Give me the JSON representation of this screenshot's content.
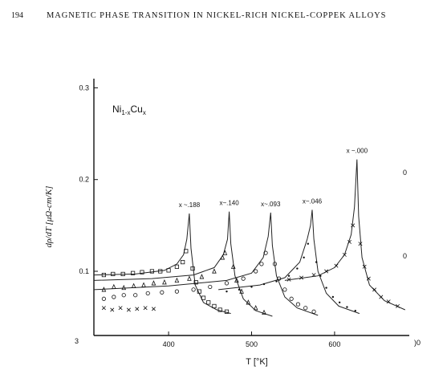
{
  "page": {
    "number": "194",
    "running_header": "MAGNETIC PHASE TRANSITION IN NICKEL-RICH NICKEL-COPPEK ALLOYS"
  },
  "chart_data": {
    "type": "scatter",
    "title": "Ni1-xCux",
    "title_parts": {
      "base": "Ni",
      "sub1": "1-x",
      "mid": "Cu",
      "sub2": "x"
    },
    "xlabel": "T [°K]",
    "ylabel": "dρ/dT [μΩ-cm/K]",
    "xlim": [
      310,
      690
    ],
    "ylim": [
      0.03,
      0.31
    ],
    "x_ticks": [
      "400",
      "500",
      "600"
    ],
    "x_tick_values": [
      400,
      500,
      600
    ],
    "y_ticks": [
      "0.1",
      "0.2",
      "0.3"
    ],
    "y_tick_values": [
      0.1,
      0.2,
      0.3
    ],
    "y_bottom_label": "3",
    "right_edge_labels": [
      "0",
      "0",
      ")0"
    ],
    "series": [
      {
        "name": "x ~ .188",
        "label": "x ~.188",
        "marker": "square",
        "Tc": 425,
        "peak": 0.163,
        "curve": [
          [
            310,
            0.096
          ],
          [
            360,
            0.097
          ],
          [
            395,
            0.101
          ],
          [
            410,
            0.108
          ],
          [
            418,
            0.118
          ],
          [
            422,
            0.135
          ],
          [
            425,
            0.163
          ],
          [
            427,
            0.125
          ],
          [
            432,
            0.085
          ],
          [
            442,
            0.066
          ],
          [
            458,
            0.058
          ],
          [
            475,
            0.054
          ]
        ],
        "points": [
          [
            322,
            0.096
          ],
          [
            333,
            0.097
          ],
          [
            345,
            0.097
          ],
          [
            357,
            0.098
          ],
          [
            368,
            0.099
          ],
          [
            380,
            0.1
          ],
          [
            390,
            0.1
          ],
          [
            400,
            0.101
          ],
          [
            410,
            0.105
          ],
          [
            417,
            0.11
          ],
          [
            421,
            0.122
          ],
          [
            429,
            0.103
          ],
          [
            433,
            0.088
          ],
          [
            437,
            0.078
          ],
          [
            442,
            0.071
          ],
          [
            448,
            0.066
          ],
          [
            455,
            0.062
          ],
          [
            462,
            0.058
          ],
          [
            470,
            0.056
          ]
        ]
      },
      {
        "name": "x ~ .140",
        "label": "x~.140",
        "marker": "triangle",
        "Tc": 473,
        "peak": 0.165,
        "curve": [
          [
            310,
            0.09
          ],
          [
            380,
            0.092
          ],
          [
            430,
            0.096
          ],
          [
            455,
            0.104
          ],
          [
            466,
            0.118
          ],
          [
            471,
            0.135
          ],
          [
            473,
            0.165
          ],
          [
            475,
            0.13
          ],
          [
            480,
            0.095
          ],
          [
            490,
            0.07
          ],
          [
            505,
            0.057
          ],
          [
            525,
            0.051
          ]
        ],
        "points": [
          [
            322,
            0.08
          ],
          [
            334,
            0.083
          ],
          [
            346,
            0.082
          ],
          [
            358,
            0.084
          ],
          [
            370,
            0.085
          ],
          [
            382,
            0.087
          ],
          [
            395,
            0.088
          ],
          [
            410,
            0.09
          ],
          [
            425,
            0.092
          ],
          [
            440,
            0.094
          ],
          [
            455,
            0.1
          ],
          [
            465,
            0.115
          ],
          [
            468,
            0.12
          ],
          [
            478,
            0.105
          ],
          [
            482,
            0.09
          ],
          [
            488,
            0.078
          ],
          [
            496,
            0.066
          ],
          [
            505,
            0.06
          ],
          [
            515,
            0.055
          ]
        ]
      },
      {
        "name": "x ~ .093",
        "label": "x~.093",
        "marker": "circle",
        "Tc": 523,
        "peak": 0.164,
        "curve": [
          [
            310,
            0.08
          ],
          [
            400,
            0.084
          ],
          [
            470,
            0.09
          ],
          [
            500,
            0.098
          ],
          [
            514,
            0.115
          ],
          [
            520,
            0.138
          ],
          [
            523,
            0.164
          ],
          [
            525,
            0.128
          ],
          [
            530,
            0.095
          ],
          [
            540,
            0.072
          ],
          [
            555,
            0.06
          ],
          [
            580,
            0.052
          ]
        ],
        "points": [
          [
            322,
            0.07
          ],
          [
            334,
            0.072
          ],
          [
            346,
            0.074
          ],
          [
            360,
            0.074
          ],
          [
            375,
            0.076
          ],
          [
            392,
            0.077
          ],
          [
            410,
            0.078
          ],
          [
            430,
            0.08
          ],
          [
            450,
            0.083
          ],
          [
            470,
            0.087
          ],
          [
            490,
            0.092
          ],
          [
            505,
            0.1
          ],
          [
            512,
            0.108
          ],
          [
            517,
            0.12
          ],
          [
            528,
            0.108
          ],
          [
            533,
            0.092
          ],
          [
            540,
            0.08
          ],
          [
            548,
            0.07
          ],
          [
            556,
            0.064
          ],
          [
            565,
            0.06
          ],
          [
            575,
            0.056
          ]
        ]
      },
      {
        "name": "x ~ .046",
        "label": "x~.046",
        "marker": "dot",
        "Tc": 573,
        "peak": 0.167,
        "curve": [
          [
            460,
            0.08
          ],
          [
            510,
            0.085
          ],
          [
            540,
            0.093
          ],
          [
            558,
            0.11
          ],
          [
            567,
            0.135
          ],
          [
            571,
            0.15
          ],
          [
            573,
            0.167
          ],
          [
            575,
            0.135
          ],
          [
            580,
            0.1
          ],
          [
            590,
            0.076
          ],
          [
            605,
            0.062
          ],
          [
            630,
            0.054
          ]
        ],
        "points": [
          [
            470,
            0.078
          ],
          [
            485,
            0.08
          ],
          [
            500,
            0.083
          ],
          [
            515,
            0.086
          ],
          [
            530,
            0.089
          ],
          [
            545,
            0.095
          ],
          [
            555,
            0.103
          ],
          [
            563,
            0.115
          ],
          [
            568,
            0.13
          ],
          [
            578,
            0.11
          ],
          [
            583,
            0.095
          ],
          [
            590,
            0.082
          ],
          [
            598,
            0.072
          ],
          [
            606,
            0.066
          ],
          [
            615,
            0.061
          ],
          [
            625,
            0.057
          ]
        ]
      },
      {
        "name": "x ~ .000",
        "label": "x ~.000",
        "marker": "cross",
        "Tc": 627,
        "peak": 0.222,
        "curve": [
          [
            540,
            0.09
          ],
          [
            580,
            0.095
          ],
          [
            600,
            0.104
          ],
          [
            612,
            0.118
          ],
          [
            620,
            0.14
          ],
          [
            624,
            0.17
          ],
          [
            627,
            0.222
          ],
          [
            629,
            0.16
          ],
          [
            633,
            0.115
          ],
          [
            642,
            0.085
          ],
          [
            660,
            0.068
          ],
          [
            685,
            0.058
          ]
        ],
        "points": [
          [
            322,
            0.06
          ],
          [
            332,
            0.058
          ],
          [
            342,
            0.06
          ],
          [
            352,
            0.058
          ],
          [
            362,
            0.059
          ],
          [
            372,
            0.06
          ],
          [
            382,
            0.059
          ],
          [
            545,
            0.091
          ],
          [
            560,
            0.093
          ],
          [
            575,
            0.096
          ],
          [
            590,
            0.1
          ],
          [
            602,
            0.106
          ],
          [
            612,
            0.118
          ],
          [
            618,
            0.132
          ],
          [
            622,
            0.15
          ],
          [
            631,
            0.13
          ],
          [
            636,
            0.105
          ],
          [
            641,
            0.092
          ],
          [
            648,
            0.08
          ],
          [
            656,
            0.072
          ],
          [
            665,
            0.067
          ],
          [
            676,
            0.062
          ]
        ]
      }
    ]
  }
}
